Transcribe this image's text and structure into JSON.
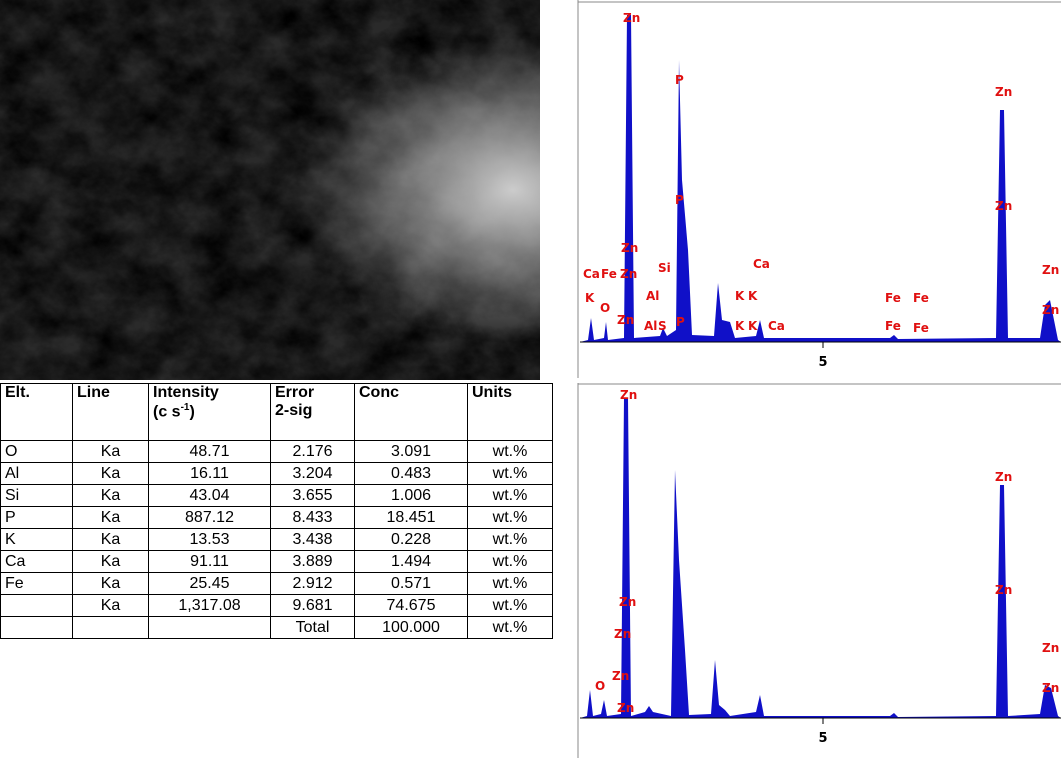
{
  "table": {
    "header": [
      [
        "Elt."
      ],
      [
        "Line"
      ],
      [
        "Intensity",
        "(c s",
        "-1",
        ")"
      ],
      [
        "Error",
        "2-sig"
      ],
      [
        "Conc"
      ],
      [
        "Units"
      ]
    ],
    "rows": [
      [
        "O",
        "Ka",
        "48.71",
        "2.176",
        "3.091",
        "wt.%"
      ],
      [
        "Al",
        "Ka",
        "16.11",
        "3.204",
        "0.483",
        "wt.%"
      ],
      [
        "Si",
        "Ka",
        "43.04",
        "3.655",
        "1.006",
        "wt.%"
      ],
      [
        "P",
        "Ka",
        "887.12",
        "8.433",
        "18.451",
        "wt.%"
      ],
      [
        "K",
        "Ka",
        "13.53",
        "3.438",
        "0.228",
        "wt.%"
      ],
      [
        "Ca",
        "Ka",
        "91.11",
        "3.889",
        "1.494",
        "wt.%"
      ],
      [
        "Fe",
        "Ka",
        "25.45",
        "2.912",
        "0.571",
        "wt.%"
      ],
      [
        "",
        "Ka",
        "1,317.08",
        "9.681",
        "74.675",
        "wt.%"
      ],
      [
        "",
        "",
        "",
        "Total",
        "100.000",
        "wt.%"
      ]
    ]
  },
  "spectra": [
    {
      "x_tick_label": "5",
      "peak_labels": [
        "Zn",
        "P",
        "Zn",
        "Zn",
        "P",
        "Zn",
        "Si",
        "Ca",
        "Ca",
        "Fe",
        "Zn",
        "Al",
        "K",
        "K",
        "Fe",
        "Fe",
        "Zn",
        "K",
        "O",
        "Zn",
        "Al",
        "S",
        "P",
        "K",
        "K",
        "Ca",
        "Fe",
        "Fe",
        "Zn"
      ]
    },
    {
      "x_tick_label": "5",
      "peak_labels": [
        "Zn",
        "Zn",
        "Zn",
        "Zn",
        "Zn",
        "Zn",
        "O",
        "Zn",
        "Zn",
        "Zn"
      ]
    }
  ]
}
